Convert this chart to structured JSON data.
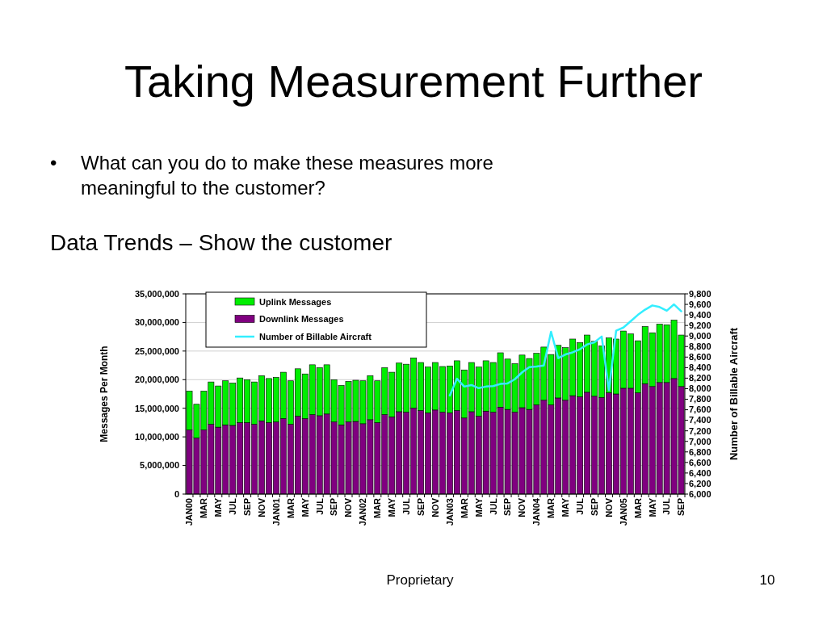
{
  "chart_data": {
    "type": "bar",
    "title": "Taking Measurement Further",
    "subtitle": "Data Trends – Show the customer",
    "annotations": [
      "•",
      "What can you do to make these measures more meaningful to the customer?",
      "Proprietary",
      "10"
    ],
    "ylabel": "Messages Per Month",
    "y2label": "Number of Billable Aircraft",
    "categories": [
      "JAN00",
      null,
      "MAR",
      null,
      "MAY",
      null,
      "JUL",
      null,
      "SEP",
      null,
      "NOV",
      null,
      "JAN01",
      null,
      "MAR",
      null,
      "MAY",
      null,
      "JUL",
      null,
      "SEP",
      null,
      "NOV",
      null,
      "JAN02",
      null,
      "MAR",
      null,
      "MAY",
      null,
      "JUL",
      null,
      "SEP",
      null,
      "NOV",
      null,
      "JAN03",
      null,
      "MAR",
      null,
      "MAY",
      null,
      "JUL",
      null,
      "SEP",
      null,
      "NOV",
      null,
      "JAN04",
      null,
      "MAR",
      null,
      "MAY",
      null,
      "JUL",
      null,
      "SEP",
      null,
      "NOV",
      null,
      "JAN05",
      null,
      "MAR",
      null,
      "MAY",
      null,
      "JUL",
      null,
      "SEP"
    ],
    "stacked": true,
    "series": [
      {
        "name": "Downlink Messages",
        "color": "#800080",
        "values": [
          11200000,
          9800000,
          11200000,
          12200000,
          11700000,
          12100000,
          12000000,
          12500000,
          12500000,
          12200000,
          12800000,
          12500000,
          12600000,
          13200000,
          12200000,
          13600000,
          13200000,
          13900000,
          13700000,
          14000000,
          12600000,
          12100000,
          12600000,
          12700000,
          12300000,
          13000000,
          12500000,
          13900000,
          13500000,
          14400000,
          14300000,
          15000000,
          14600000,
          14200000,
          14700000,
          14300000,
          14200000,
          14600000,
          13300000,
          14400000,
          13600000,
          14500000,
          14300000,
          15200000,
          14800000,
          14300000,
          15100000,
          14800000,
          15600000,
          16400000,
          15600000,
          16800000,
          16400000,
          17200000,
          17000000,
          17800000,
          17100000,
          16900000,
          17700000,
          17500000,
          18500000,
          18500000,
          17700000,
          19300000,
          18800000,
          19500000,
          19500000,
          20200000,
          18800000
        ]
      },
      {
        "name": "Uplink Messages",
        "color": "#00ee00",
        "values": [
          6800000,
          5900000,
          6800000,
          7400000,
          7200000,
          7700000,
          7400000,
          7800000,
          7500000,
          7400000,
          7900000,
          7700000,
          7800000,
          8100000,
          7600000,
          8300000,
          7800000,
          8700000,
          8400000,
          8600000,
          7400000,
          6900000,
          7100000,
          7200000,
          7500000,
          7700000,
          7300000,
          8200000,
          7800000,
          8500000,
          8400000,
          8800000,
          8400000,
          8000000,
          8300000,
          8000000,
          8200000,
          8700000,
          8400000,
          8600000,
          8600000,
          8800000,
          8700000,
          9500000,
          8800000,
          8500000,
          9200000,
          8900000,
          9000000,
          9300000,
          8800000,
          9200000,
          9200000,
          9900000,
          9500000,
          10000000,
          9600000,
          9000000,
          9600000,
          9600000,
          10000000,
          9500000,
          9100000,
          10000000,
          9400000,
          10200000,
          10100000,
          10200000,
          9000000
        ]
      },
      {
        "name": "Number of Billable Aircraft",
        "type": "line",
        "axis": "y2",
        "color": "#33eeff",
        "values": [
          null,
          null,
          null,
          null,
          null,
          null,
          null,
          null,
          null,
          null,
          null,
          null,
          null,
          null,
          null,
          null,
          null,
          null,
          null,
          null,
          null,
          null,
          null,
          null,
          null,
          null,
          null,
          null,
          null,
          null,
          null,
          null,
          null,
          null,
          null,
          null,
          7870,
          8190,
          8040,
          8070,
          8010,
          8040,
          8050,
          8090,
          8100,
          8180,
          8310,
          8410,
          8420,
          8440,
          9080,
          8580,
          8650,
          8690,
          8750,
          8840,
          8880,
          8990,
          7970,
          9100,
          9160,
          9280,
          9400,
          9500,
          9580,
          9550,
          9480,
          9600,
          9470
        ]
      }
    ],
    "ylim": [
      0,
      35000000
    ],
    "yticks": [
      {
        "value": 0,
        "label": "0"
      },
      {
        "value": 5000000,
        "label": "5,000,000"
      },
      {
        "value": 10000000,
        "label": "10,000,000"
      },
      {
        "value": 15000000,
        "label": "15,000,000"
      },
      {
        "value": 20000000,
        "label": "20,000,000"
      },
      {
        "value": 25000000,
        "label": "25,000,000"
      },
      {
        "value": 30000000,
        "label": "30,000,000"
      },
      {
        "value": 35000000,
        "label": "35,000,000"
      }
    ],
    "y2lim": [
      6000,
      9800
    ],
    "y2ticks": [
      {
        "value": 6000,
        "label": "6,000"
      },
      {
        "value": 6200,
        "label": "6,200"
      },
      {
        "value": 6400,
        "label": "6,400"
      },
      {
        "value": 6600,
        "label": "6,600"
      },
      {
        "value": 6800,
        "label": "6,800"
      },
      {
        "value": 7000,
        "label": "7,000"
      },
      {
        "value": 7200,
        "label": "7,200"
      },
      {
        "value": 7400,
        "label": "7,400"
      },
      {
        "value": 7600,
        "label": "7,600"
      },
      {
        "value": 7800,
        "label": "7,800"
      },
      {
        "value": 8000,
        "label": "8,000"
      },
      {
        "value": 8200,
        "label": "8,200"
      },
      {
        "value": 8400,
        "label": "8,400"
      },
      {
        "value": 8600,
        "label": "8,600"
      },
      {
        "value": 8800,
        "label": "8,800"
      },
      {
        "value": 9000,
        "label": "9,000"
      },
      {
        "value": 9200,
        "label": "9,200"
      },
      {
        "value": 9400,
        "label": "9,400"
      },
      {
        "value": 9600,
        "label": "9,600"
      },
      {
        "value": 9800,
        "label": "9,800"
      }
    ],
    "grid": "y",
    "legend": "top left"
  }
}
